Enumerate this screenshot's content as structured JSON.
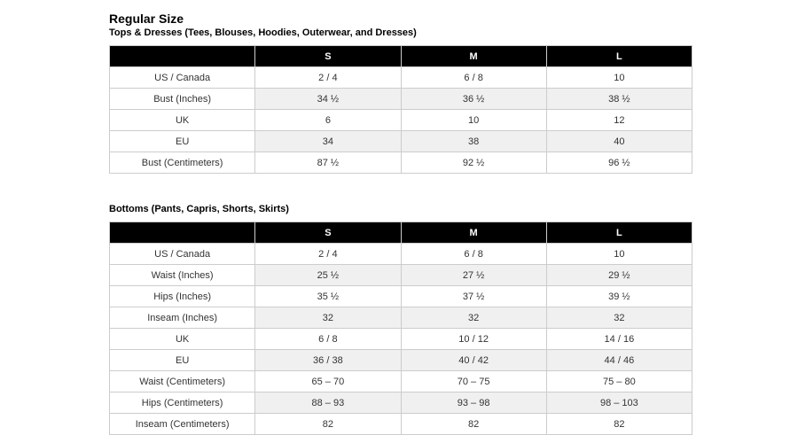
{
  "title": "Regular Size",
  "colors": {
    "header_bg": "#000000",
    "header_text": "#ffffff",
    "stripe_bg": "#f0f0f0",
    "border": "#cccccc",
    "body_text": "#333333"
  },
  "sections": [
    {
      "subtitle": "Tops & Dresses (Tees, Blouses, Hoodies, Outerwear, and Dresses)",
      "table": {
        "columns": [
          "S",
          "M",
          "L"
        ],
        "rows": [
          {
            "label": "US / Canada",
            "values": [
              "2 / 4",
              "6 / 8",
              "10"
            ]
          },
          {
            "label": "Bust (Inches)",
            "values": [
              "34 ½",
              "36 ½",
              "38 ½"
            ]
          },
          {
            "label": "UK",
            "values": [
              "6",
              "10",
              "12"
            ]
          },
          {
            "label": "EU",
            "values": [
              "34",
              "38",
              "40"
            ]
          },
          {
            "label": "Bust (Centimeters)",
            "values": [
              "87 ½",
              "92 ½",
              "96 ½"
            ]
          }
        ]
      }
    },
    {
      "subtitle": "Bottoms (Pants, Capris, Shorts, Skirts)",
      "table": {
        "columns": [
          "S",
          "M",
          "L"
        ],
        "rows": [
          {
            "label": "US / Canada",
            "values": [
              "2 / 4",
              "6 / 8",
              "10"
            ]
          },
          {
            "label": "Waist (Inches)",
            "values": [
              "25 ½",
              "27 ½",
              "29 ½"
            ]
          },
          {
            "label": "Hips (Inches)",
            "values": [
              "35 ½",
              "37 ½",
              "39 ½"
            ]
          },
          {
            "label": "Inseam (Inches)",
            "values": [
              "32",
              "32",
              "32"
            ]
          },
          {
            "label": "UK",
            "values": [
              "6 / 8",
              "10 / 12",
              "14 / 16"
            ]
          },
          {
            "label": "EU",
            "values": [
              "36 / 38",
              "40 / 42",
              "44 / 46"
            ]
          },
          {
            "label": "Waist (Centimeters)",
            "values": [
              "65 – 70",
              "70 – 75",
              "75 – 80"
            ]
          },
          {
            "label": "Hips (Centimeters)",
            "values": [
              "88 – 93",
              "93 – 98",
              "98 – 103"
            ]
          },
          {
            "label": "Inseam (Centimeters)",
            "values": [
              "82",
              "82",
              "82"
            ]
          }
        ]
      }
    }
  ]
}
